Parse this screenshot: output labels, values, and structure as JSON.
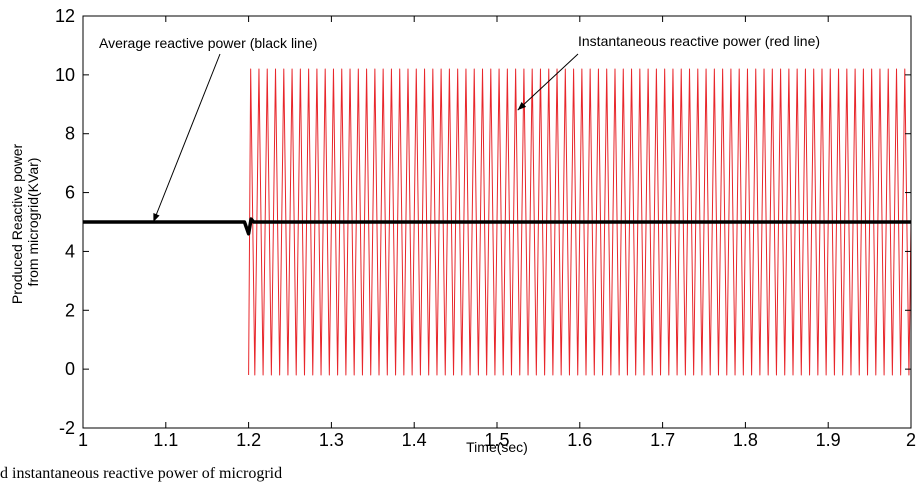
{
  "chart_data": {
    "type": "line",
    "title": "",
    "xlabel": "Time(sec)",
    "ylabel_lines": [
      "Produced Reactive power",
      "from microgrid(KVar)"
    ],
    "xlim": [
      1,
      2
    ],
    "ylim": [
      -2,
      12
    ],
    "x_ticks": [
      1,
      1.1,
      1.2,
      1.3,
      1.4,
      1.5,
      1.6,
      1.7,
      1.8,
      1.9,
      2
    ],
    "x_tick_labels": [
      "1",
      "1.1",
      "1.2",
      "1.3",
      "1.4",
      "1.5",
      "1.6",
      "1.7",
      "1.8",
      "1.9",
      "2"
    ],
    "y_ticks": [
      -2,
      0,
      2,
      4,
      6,
      8,
      10,
      12
    ],
    "y_tick_labels": [
      "-2",
      "0",
      "2",
      "4",
      "6",
      "8",
      "10",
      "12"
    ],
    "grid": false,
    "series": [
      {
        "name": "Instantaneous reactive power (red line)",
        "color": "#e8262b",
        "style": "oscillation",
        "start_x": 1.2,
        "end_x": 2.0,
        "min": -0.2,
        "max": 10.2,
        "mean": 5.0,
        "frequency_hz": 100
      },
      {
        "name": "Average reactive power (black line)",
        "color": "#000000",
        "x": [
          1.0,
          1.195,
          1.2,
          1.203,
          1.206,
          2.0
        ],
        "y": [
          5.0,
          5.0,
          4.6,
          5.1,
          5.0,
          5.0
        ]
      }
    ],
    "annotations": [
      {
        "text": "Average reactive power (black line)",
        "arrow_to": [
          1.085,
          5.0
        ]
      },
      {
        "text": "Instantaneous reactive power (red line)",
        "arrow_to": [
          1.525,
          8.8
        ]
      }
    ]
  },
  "caption": "d instantaneous reactive power of microgrid"
}
